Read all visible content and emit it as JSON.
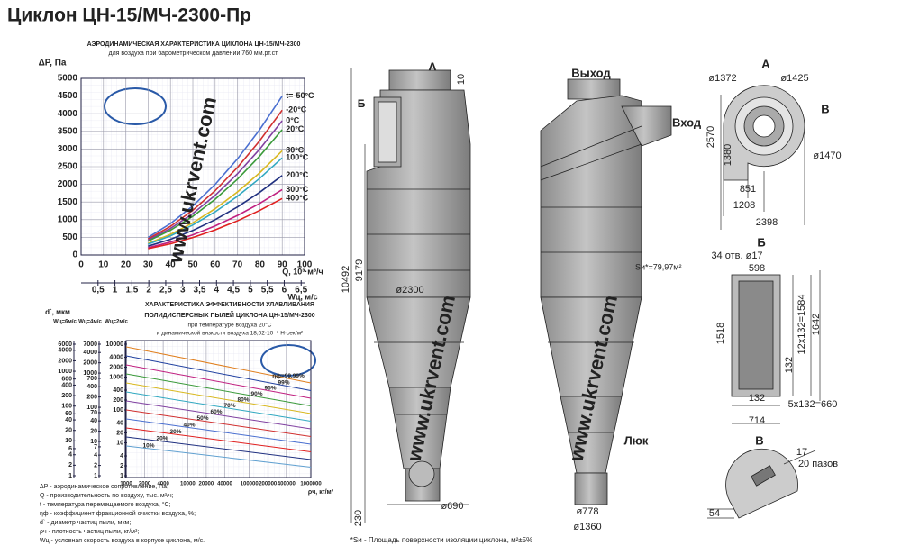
{
  "title": "Циклон ЦН-15/МЧ-2300-Пр",
  "watermark": "www.ukrvent.com",
  "aero_chart": {
    "type": "line",
    "title": "АЭРОДИНАМИЧЕСКАЯ ХАРАКТЕРИСТИКА ЦИКЛОНА ЦН-15/МЧ-2300",
    "subtitle": "для воздуха при барометрическом давлении 760 мм.рт.ст.",
    "y_label": "ΔP, Па",
    "x_label": "Q, 10³·м³/ч",
    "x2_label": "Wц, м/с",
    "x": [
      30,
      40,
      50,
      60,
      70,
      80,
      90
    ],
    "series": [
      {
        "name": "t=-50°C",
        "color": "#4a6fd0",
        "values": [
          500,
          889,
          1389,
          2000,
          2722,
          3556,
          4500
        ]
      },
      {
        "name": "-20°C",
        "color": "#d03030",
        "values": [
          456,
          810,
          1265,
          1822,
          2480,
          3240,
          4100
        ]
      },
      {
        "name": "0°C",
        "color": "#8040a0",
        "values": [
          422,
          751,
          1173,
          1689,
          2299,
          3002,
          3800
        ]
      },
      {
        "name": "20°C",
        "color": "#3a9a3a",
        "values": [
          394,
          701,
          1096,
          1578,
          2148,
          2805,
          3550
        ]
      },
      {
        "name": "80°C",
        "color": "#d8b820",
        "values": [
          328,
          583,
          910,
          1311,
          1785,
          2331,
          2950
        ]
      },
      {
        "name": "100°C",
        "color": "#30a8c0",
        "values": [
          306,
          543,
          849,
          1222,
          1664,
          2173,
          2750
        ]
      },
      {
        "name": "200°C",
        "color": "#203080",
        "values": [
          250,
          444,
          694,
          1000,
          1361,
          1778,
          2250
        ]
      },
      {
        "name": "300°C",
        "color": "#c02080",
        "values": [
          206,
          365,
          571,
          822,
          1119,
          1462,
          1850
        ]
      },
      {
        "name": "400°C",
        "color": "#e02020",
        "values": [
          178,
          316,
          494,
          711,
          968,
          1264,
          1600
        ]
      }
    ],
    "xlim": [
      0,
      100
    ],
    "xticks": [
      0,
      10,
      20,
      30,
      40,
      50,
      60,
      70,
      80,
      90,
      100
    ],
    "ylim": [
      0,
      5000
    ],
    "yticks": [
      0,
      500,
      1000,
      1500,
      2000,
      2500,
      3000,
      3500,
      4000,
      4500,
      5000
    ],
    "x2lim": [
      0,
      6.6
    ],
    "x2ticks": [
      {
        "value": 0.5,
        "label": "0,5"
      },
      1,
      {
        "value": 1.5,
        "label": "1,5"
      },
      2,
      {
        "value": 2.5,
        "label": "2,5"
      },
      3,
      {
        "value": 3.5,
        "label": "3,5"
      },
      4,
      {
        "value": 4.5,
        "label": "4,5"
      },
      5,
      {
        "value": 5.5,
        "label": "5,5"
      },
      6,
      {
        "value": 6.5,
        "label": "6,5"
      }
    ],
    "grid": true
  },
  "efficiency_chart": {
    "title": "ХАРАКТЕРИСТИКА ЭФФЕКТИВНОСТИ УЛАВЛИВАНИЯ",
    "title2": "ПОЛИДИСПЕРСНЫХ ПЫЛЕЙ ЦИКЛОНА ЦН-15/МЧ-2300",
    "note1": "при температуре воздуха 20°С",
    "note2": "и динамической вязкости воздуха 18,02·10⁻⁶ Н·сек/м²",
    "d_label": "d`, мкм",
    "column_labels": [
      "Wц=6м/с",
      "Wц=4м/с",
      "Wц=2м/с"
    ],
    "d_scales": [
      [
        6000,
        4000,
        2000,
        1000,
        600,
        400,
        200,
        100,
        60,
        40,
        20,
        10,
        6,
        4,
        2,
        1
      ],
      [
        7000,
        4000,
        2000,
        1000,
        700,
        400,
        200,
        100,
        70,
        40,
        20,
        10,
        7,
        4,
        2,
        1
      ],
      [
        10000,
        4000,
        2000,
        1000,
        400,
        200,
        100,
        40,
        20,
        10,
        4,
        2,
        1
      ]
    ],
    "x_label": "ρч, кг/м³",
    "xlim": [
      1000,
      1000000
    ],
    "xticks": [
      1000,
      2000,
      4000,
      10000,
      20000,
      40000,
      100000,
      200000,
      400000,
      1000000
    ],
    "efficiency_labels": [
      "ηф=99,99%",
      "99%",
      "95%",
      "90%",
      "80%",
      "70%",
      "60%",
      "50%",
      "40%",
      "30%",
      "20%",
      "10%"
    ]
  },
  "legend": [
    "ΔР - аэродинамическое сопротивление, Па;",
    "Q - производительность по воздуху, тыс. м³/ч;",
    "t - температура перемещаемого воздуха, °С;",
    "ηф - коэффициент фракционной очистки воздуха, %;",
    "d` - диаметр частиц пыли, мкм;",
    "ρч - плотность частиц пыли, кг/м³;",
    "Wц - условная скорость воздуха в корпусе циклона, м/с."
  ],
  "drawings": {
    "front": {
      "a": "А",
      "a_gap": 10,
      "b": "Б",
      "height": 10492,
      "height_body": 9179,
      "diameter": "ø2300",
      "outlet": "ø690",
      "base": 230
    },
    "side": {
      "outlet": "Выход",
      "inlet": "Вход",
      "area": "Sи*=79,97м²",
      "hatch": "Люк",
      "d1": "ø778",
      "d2": "ø1360"
    },
    "view_a": {
      "label": "А",
      "d1": "ø1372",
      "d2": "ø1425",
      "b": "В",
      "h": 2570,
      "h2": 1380,
      "d3": "ø1470",
      "w1": 851,
      "w2": 1208,
      "w3": 2398
    },
    "view_b": {
      "label": "Б",
      "holes": "34 отв. ø17",
      "w": 598,
      "h": 1518,
      "pitch_v": "12x132=1584",
      "h2": 1642,
      "step_v": 132,
      "step_h": 132,
      "pitch_h": "5x132=660",
      "w2": 714
    },
    "view_v": {
      "label": "В",
      "size": 17,
      "slots": "20 пазов",
      "offset": 54
    },
    "footnote": "*Sи - Площадь поверхности изоляции циклона, м²±5%"
  }
}
